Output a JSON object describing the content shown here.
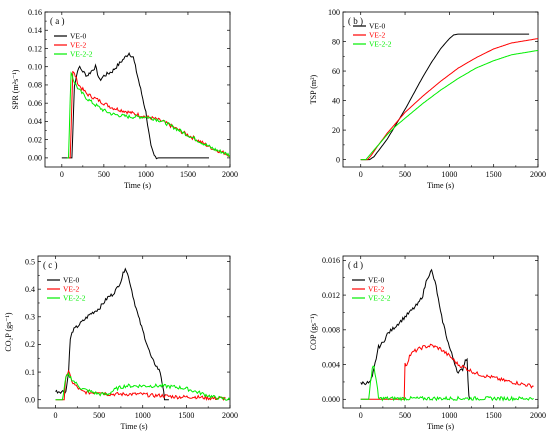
{
  "chart_data": [
    {
      "id": "a",
      "type": "line",
      "panel_label": "( a )",
      "ylabel": "SPR (m²s⁻¹)",
      "xlabel": "Time (s)",
      "xlim": [
        -200,
        2000
      ],
      "ylim": [
        -0.01,
        0.16
      ],
      "xticks": [
        0,
        500,
        1000,
        1500,
        2000
      ],
      "yticks": [
        0.0,
        0.02,
        0.04,
        0.06,
        0.08,
        0.1,
        0.12,
        0.14,
        0.16
      ],
      "ytick_labels": [
        "0.00",
        "0.02",
        "0.04",
        "0.06",
        "0.08",
        "0.10",
        "0.12",
        "0.14",
        "0.16"
      ],
      "legend_position": "top-left",
      "series": [
        {
          "name": "VE-0",
          "color": "#000000",
          "x": [
            0,
            120,
            150,
            200,
            300,
            400,
            450,
            500,
            600,
            650,
            700,
            750,
            800,
            850,
            900,
            950,
            1000,
            1030,
            1060,
            1100,
            1150,
            1200,
            1300,
            1500,
            1750
          ],
          "y": [
            0.0,
            0.0,
            0.08,
            0.1,
            0.09,
            0.1,
            0.085,
            0.09,
            0.095,
            0.1,
            0.105,
            0.11,
            0.115,
            0.11,
            0.09,
            0.07,
            0.05,
            0.03,
            0.012,
            0.002,
            0.0,
            0.0,
            0.0,
            0.0,
            0.0
          ]
        },
        {
          "name": "VE-2",
          "color": "#ff0000",
          "x": [
            80,
            100,
            130,
            160,
            200,
            300,
            400,
            500,
            600,
            800,
            1000,
            1100,
            1200,
            1400,
            1600,
            1800,
            2000
          ],
          "y": [
            0.0,
            0.0,
            0.095,
            0.09,
            0.08,
            0.07,
            0.065,
            0.06,
            0.055,
            0.05,
            0.045,
            0.043,
            0.04,
            0.03,
            0.02,
            0.01,
            0.003
          ]
        },
        {
          "name": "VE-2-2",
          "color": "#00ee00",
          "x": [
            60,
            80,
            110,
            140,
            200,
            300,
            400,
            500,
            600,
            800,
            1000,
            1100,
            1200,
            1400,
            1600,
            1800,
            2000
          ],
          "y": [
            0.0,
            0.0,
            0.095,
            0.085,
            0.075,
            0.065,
            0.058,
            0.052,
            0.048,
            0.045,
            0.045,
            0.043,
            0.04,
            0.03,
            0.02,
            0.01,
            0.003
          ]
        }
      ]
    },
    {
      "id": "b",
      "type": "line",
      "panel_label": "( b )",
      "ylabel": "TSP (m²)",
      "xlabel": "Time (s)",
      "xlim": [
        -200,
        2000
      ],
      "ylim": [
        -5,
        100
      ],
      "xticks": [
        0,
        500,
        1000,
        1500,
        2000
      ],
      "yticks": [
        0,
        20,
        40,
        60,
        80,
        100
      ],
      "ytick_labels": [
        "0",
        "20",
        "40",
        "60",
        "80",
        "100"
      ],
      "legend_position": "top-right",
      "series": [
        {
          "name": "VE-0",
          "color": "#000000",
          "x": [
            0,
            100,
            150,
            200,
            300,
            400,
            500,
            600,
            700,
            800,
            900,
            1000,
            1050,
            1100,
            1200,
            1400,
            1600,
            1750,
            1900
          ],
          "y": [
            0,
            0,
            2,
            6,
            14,
            24,
            34,
            45,
            56,
            66,
            75,
            82,
            84.5,
            85,
            85,
            85,
            85,
            85,
            85
          ]
        },
        {
          "name": "VE-2",
          "color": "#ff0000",
          "x": [
            0,
            80,
            120,
            200,
            300,
            400,
            500,
            700,
            900,
            1100,
            1300,
            1500,
            1700,
            1900,
            2000
          ],
          "y": [
            0,
            0,
            3,
            10,
            18,
            25,
            32,
            43,
            53,
            62,
            69,
            75,
            79,
            81,
            82
          ]
        },
        {
          "name": "VE-2-2",
          "color": "#00ee00",
          "x": [
            0,
            60,
            100,
            200,
            300,
            400,
            500,
            700,
            900,
            1100,
            1300,
            1500,
            1700,
            1900,
            2000
          ],
          "y": [
            0,
            0,
            3,
            10,
            17,
            23,
            28,
            38,
            47,
            55,
            62,
            67,
            71,
            73,
            74
          ]
        }
      ]
    },
    {
      "id": "c",
      "type": "line",
      "panel_label": "( c )",
      "ylabel": "CO₂P (gs⁻¹)",
      "xlabel": "Time (s)",
      "xlim": [
        -200,
        2000
      ],
      "ylim": [
        -0.03,
        0.52
      ],
      "xticks": [
        0,
        500,
        1000,
        1500,
        2000
      ],
      "yticks": [
        0.0,
        0.1,
        0.2,
        0.3,
        0.4,
        0.5
      ],
      "ytick_labels": [
        "0.0",
        "0.1",
        "0.2",
        "0.3",
        "0.4",
        "0.5"
      ],
      "legend_position": "top-left",
      "series": [
        {
          "name": "VE-0",
          "color": "#000000",
          "x": [
            0,
            120,
            150,
            170,
            200,
            300,
            400,
            500,
            600,
            650,
            700,
            750,
            800,
            850,
            900,
            950,
            1000,
            1100,
            1200,
            1230,
            1250,
            1300
          ],
          "y": [
            0.03,
            0.03,
            0.1,
            0.22,
            0.25,
            0.28,
            0.31,
            0.33,
            0.37,
            0.38,
            0.4,
            0.43,
            0.48,
            0.43,
            0.36,
            0.3,
            0.25,
            0.15,
            0.1,
            0.05,
            0.0,
            0.0
          ]
        },
        {
          "name": "VE-2",
          "color": "#ff0000",
          "x": [
            0,
            100,
            120,
            150,
            200,
            300,
            400,
            500,
            600,
            700,
            800,
            900,
            1000,
            1100,
            1200,
            1400,
            1600,
            1800,
            1950
          ],
          "y": [
            0,
            0,
            0.09,
            0.1,
            0.06,
            0.03,
            0.025,
            0.03,
            0.02,
            0.02,
            0.02,
            0.02,
            0.02,
            0.015,
            0.015,
            0.01,
            0.01,
            0.005,
            0.005
          ]
        },
        {
          "name": "VE-2-2",
          "color": "#00ee00",
          "x": [
            0,
            80,
            120,
            150,
            200,
            300,
            400,
            500,
            600,
            650,
            700,
            800,
            900,
            1000,
            1100,
            1200,
            1300,
            1400,
            1500,
            1600,
            1700,
            1800,
            1900,
            2000
          ],
          "y": [
            0,
            0,
            0.08,
            0.09,
            0.07,
            0.04,
            0.03,
            0.02,
            0.02,
            0.03,
            0.04,
            0.05,
            0.05,
            0.05,
            0.05,
            0.05,
            0.048,
            0.045,
            0.04,
            0.03,
            0.02,
            0.01,
            0.005,
            0.0
          ]
        }
      ]
    },
    {
      "id": "d",
      "type": "line",
      "panel_label": "( d )",
      "ylabel": "COP (gs⁻¹)",
      "xlabel": "Time (s)",
      "xlim": [
        -200,
        2000
      ],
      "ylim": [
        -0.001,
        0.0165
      ],
      "xticks": [
        0,
        500,
        1000,
        1500,
        2000
      ],
      "yticks": [
        0.0,
        0.004,
        0.008,
        0.012,
        0.016
      ],
      "ytick_labels": [
        "0.000",
        "0.004",
        "0.008",
        "0.012",
        "0.016"
      ],
      "legend_position": "top-left",
      "series": [
        {
          "name": "VE-0",
          "color": "#000000",
          "x": [
            0,
            100,
            130,
            150,
            200,
            250,
            300,
            400,
            500,
            600,
            650,
            700,
            750,
            800,
            850,
            900,
            1000,
            1100,
            1150,
            1180,
            1200,
            1210,
            1220,
            1230
          ],
          "y": [
            0.0019,
            0.0019,
            0.0025,
            0.0035,
            0.006,
            0.0065,
            0.0075,
            0.0085,
            0.0095,
            0.0105,
            0.011,
            0.012,
            0.014,
            0.0148,
            0.013,
            0.01,
            0.006,
            0.003,
            0.0035,
            0.0045,
            0.0048,
            0.002,
            0.0005,
            0.0
          ]
        },
        {
          "name": "VE-2",
          "color": "#ff0000",
          "x": [
            0,
            490,
            500,
            520,
            550,
            600,
            700,
            800,
            900,
            1000,
            1100,
            1200,
            1300,
            1400,
            1500,
            1600,
            1700,
            1800,
            1900,
            1950
          ],
          "y": [
            0,
            0,
            0.004,
            0.004,
            0.005,
            0.0055,
            0.006,
            0.0062,
            0.0058,
            0.005,
            0.004,
            0.0035,
            0.003,
            0.0027,
            0.0025,
            0.0022,
            0.002,
            0.0018,
            0.0016,
            0.0015
          ]
        },
        {
          "name": "VE-2-2",
          "color": "#00ee00",
          "x": [
            0,
            90,
            110,
            130,
            150,
            170,
            190,
            200,
            220,
            300,
            600,
            1000,
            1400,
            1800,
            1950
          ],
          "y": [
            0,
            0,
            0.002,
            0.0035,
            0.0038,
            0.0025,
            0.001,
            0.0001,
            0.0001,
            0.0001,
            0.0001,
            0.0001,
            0.0001,
            0.0001,
            0.0001
          ]
        }
      ]
    }
  ]
}
